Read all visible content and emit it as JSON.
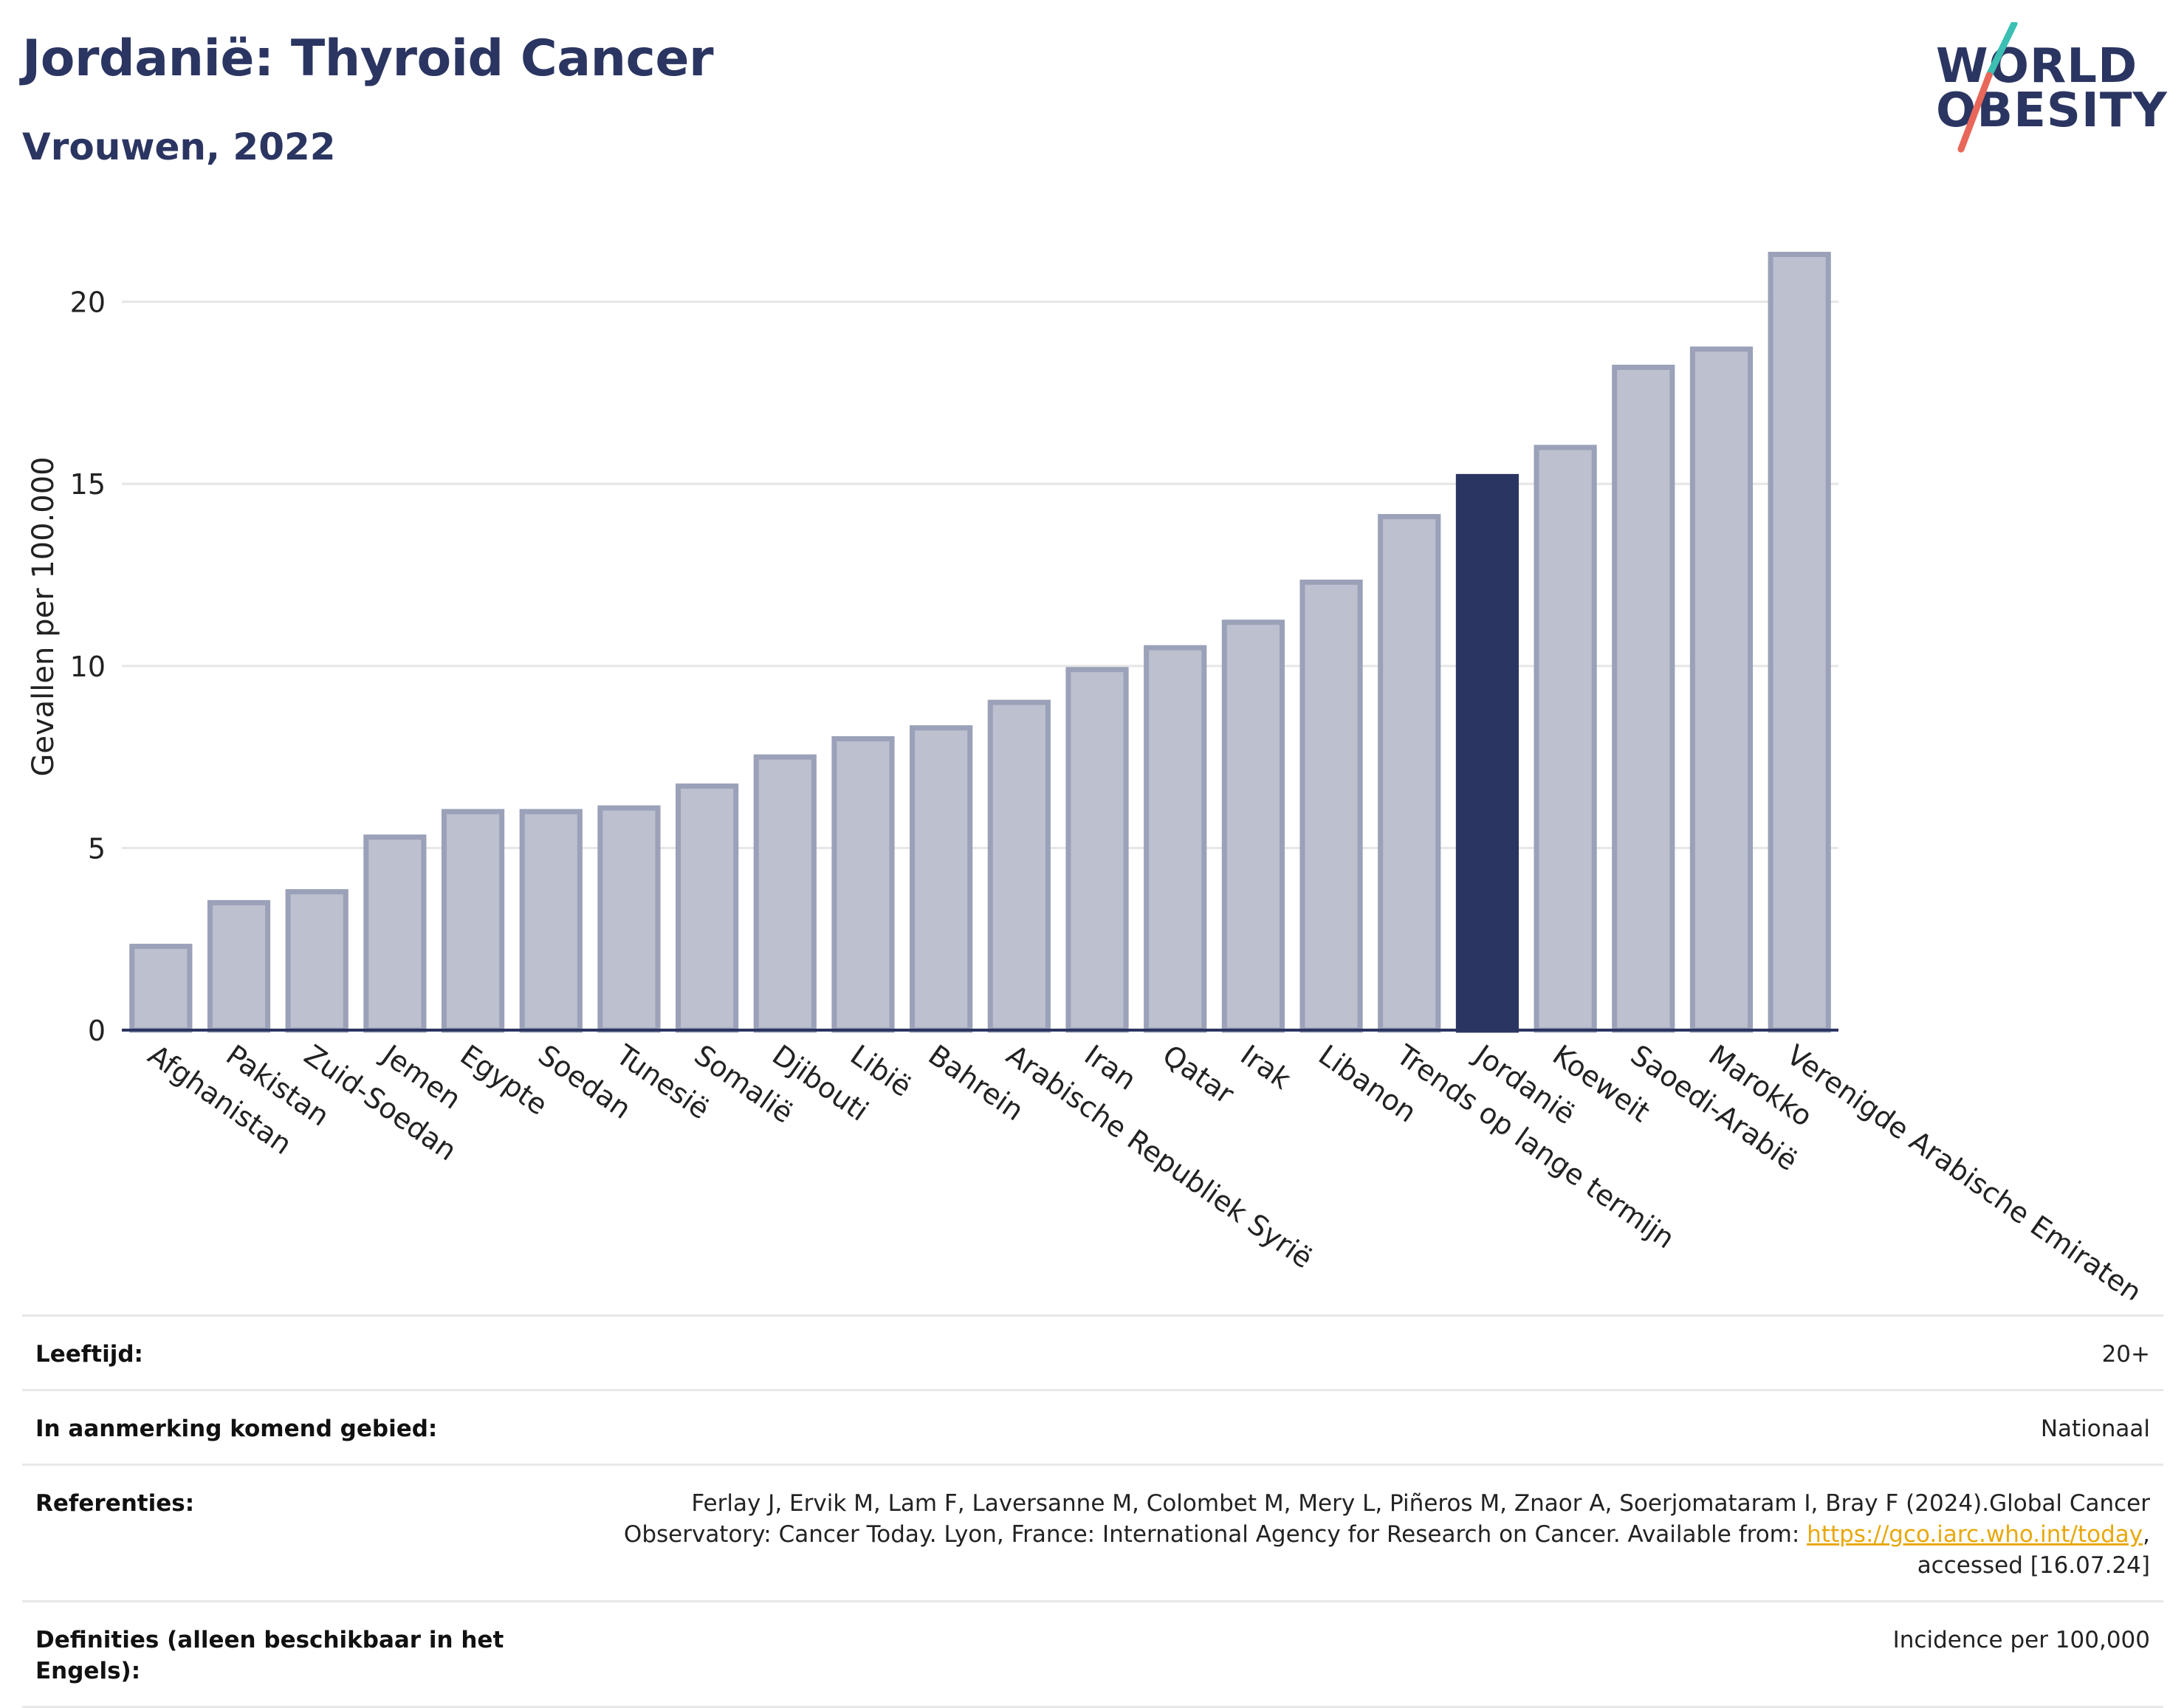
{
  "header": {
    "title": "Jordanië: Thyroid Cancer",
    "subtitle": "Vrouwen, 2022"
  },
  "logo": {
    "line1": "WORLD",
    "line2": "OBESITY",
    "accent_colors": [
      "#3bbfb3",
      "#e8675a"
    ]
  },
  "colors": {
    "bar": "#bcc0cf",
    "bar_border": "#9aa1b8",
    "highlight": "#2b3561",
    "grid": "#e6e6e6",
    "axis": "#2b3561"
  },
  "chart_data": {
    "type": "bar",
    "categories": [
      "Afghanistan",
      "Pakistan",
      "Zuid-Soedan",
      "Jemen",
      "Egypte",
      "Soedan",
      "Tunesië",
      "Somalië",
      "Djibouti",
      "Libië",
      "Bahrein",
      "Arabische Republiek Syrië",
      "Iran",
      "Qatar",
      "Irak",
      "Libanon",
      "Trends op lange termijn",
      "Jordanië",
      "Koeweit",
      "Saoedi-Arabië",
      "Marokko",
      "Verenigde Arabische Emiraten"
    ],
    "values": [
      2.3,
      3.5,
      3.8,
      5.3,
      6.0,
      6.0,
      6.1,
      6.7,
      7.5,
      8.0,
      8.3,
      9.0,
      9.9,
      10.5,
      11.2,
      12.3,
      14.1,
      15.2,
      16.0,
      18.2,
      18.7,
      21.3
    ],
    "highlight": "Jordanië",
    "ylabel": "Gevallen per 100.000",
    "xlabel": "",
    "ylim": [
      0,
      22
    ],
    "yticks": [
      0,
      5,
      10,
      15,
      20
    ],
    "grid": true
  },
  "meta": {
    "rows": [
      {
        "label": "Leeftijd:",
        "value": "20+"
      },
      {
        "label": "In aanmerking komend gebied:",
        "value": "Nationaal"
      },
      {
        "label": "Referenties:",
        "value_pre": "Ferlay J, Ervik M, Lam F, Laversanne M, Colombet M, Mery L, Piñeros M, Znaor A, Soerjomataram I, Bray F (2024).Global Cancer Observatory: Cancer Today. Lyon, France: International Agency for Research on Cancer. Available from: ",
        "link": "https://gco.iarc.who.int/today",
        "value_post": ", accessed [16.07.24]"
      },
      {
        "label": "Definities (alleen beschikbaar in het Engels):",
        "value": "Incidence per 100,000"
      }
    ]
  }
}
